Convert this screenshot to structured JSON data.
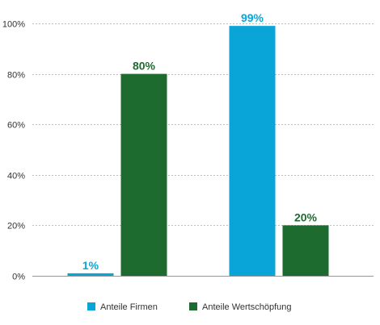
{
  "chart_data": {
    "type": "bar",
    "title": "",
    "xlabel": "",
    "ylabel": "",
    "ylim": [
      0,
      100
    ],
    "yticks": [
      0,
      20,
      40,
      60,
      80,
      100
    ],
    "ytick_suffix": "%",
    "categories": [
      "",
      ""
    ],
    "series": [
      {
        "name": "Anteile Firmen",
        "color": "#0aa5d8",
        "values": [
          1,
          99
        ],
        "labels": [
          "1%",
          "99%"
        ]
      },
      {
        "name": "Anteile Wertschöpfung",
        "color": "#1e6b30",
        "values": [
          80,
          20
        ],
        "labels": [
          "80%",
          "20%"
        ]
      }
    ],
    "grid": true,
    "legend_position": "bottom"
  }
}
